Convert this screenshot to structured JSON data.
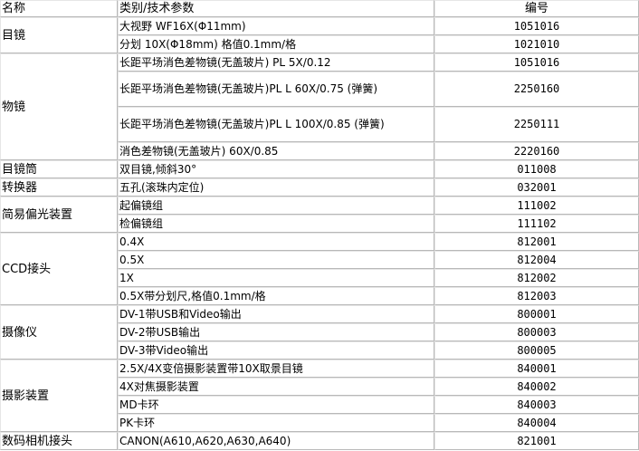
{
  "header": {
    "name": "名称",
    "spec": "类别/技术参数",
    "code": "编号"
  },
  "groups": [
    {
      "name": "目镜",
      "items": [
        {
          "spec": "大视野  WF16X(Φ11mm)",
          "code": "1051016"
        },
        {
          "spec": "分划  10X(Φ18mm) 格值0.1mm/格",
          "code": "1021010"
        }
      ]
    },
    {
      "name": "物镜",
      "items": [
        {
          "spec": "长距平场消色差物镜(无盖玻片) PL 5X/0.12",
          "code": "1051016"
        },
        {
          "spec": "长距平场消色差物镜(无盖玻片)PL L 60X/0.75 (弹簧)",
          "code": "2250160",
          "tall": true
        },
        {
          "spec": "长距平场消色差物镜(无盖玻片)PL L 100X/0.85 (弹簧)",
          "code": "2250111",
          "tall": true
        },
        {
          "spec": "消色差物镜(无盖玻片) 60X/0.85",
          "code": "2220160"
        }
      ]
    },
    {
      "name": "目镜筒",
      "items": [
        {
          "spec": "双目镜,倾斜30°",
          "code": "011008"
        }
      ]
    },
    {
      "name": "转换器",
      "items": [
        {
          "spec": "五孔(滚珠内定位)",
          "code": "032001"
        }
      ]
    },
    {
      "name": "简易偏光装置",
      "items": [
        {
          "spec": "起偏镜组",
          "code": "111002"
        },
        {
          "spec": "检偏镜组",
          "code": "111102"
        }
      ]
    },
    {
      "name": "CCD接头",
      "items": [
        {
          "spec": "0.4X",
          "code": "812001"
        },
        {
          "spec": "0.5X",
          "code": "812004"
        },
        {
          "spec": "1X",
          "code": "812002"
        },
        {
          "spec": "0.5X带分划尺,格值0.1mm/格",
          "code": "812003"
        }
      ]
    },
    {
      "name": "摄像仪",
      "items": [
        {
          "spec": "DV-1带USB和Video输出",
          "code": "800001"
        },
        {
          "spec": "DV-2带USB输出",
          "code": "800003"
        },
        {
          "spec": "DV-3带Video输出",
          "code": "800005"
        }
      ]
    },
    {
      "name": "摄影装置",
      "items": [
        {
          "spec": "2.5X/4X变倍摄影装置带10X取景目镜",
          "code": "840001"
        },
        {
          "spec": "4X对焦摄影装置",
          "code": "840002"
        },
        {
          "spec": "MD卡环",
          "code": "840003"
        },
        {
          "spec": "PK卡环",
          "code": "840004"
        }
      ]
    },
    {
      "name": "数码相机接头",
      "items": [
        {
          "spec": "CANON(A610,A620,A630,A640)",
          "code": "821001"
        }
      ]
    }
  ]
}
